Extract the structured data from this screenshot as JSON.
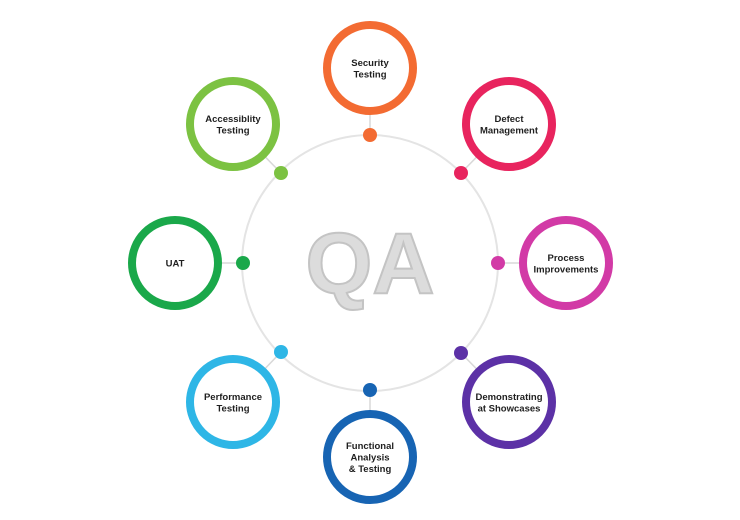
{
  "center": {
    "label": "QA"
  },
  "nodes": [
    {
      "id": "security-testing",
      "lines": [
        "Security",
        "Testing"
      ],
      "color": "#f36b32"
    },
    {
      "id": "defect-management",
      "lines": [
        "Defect",
        "Management"
      ],
      "color": "#e8245e"
    },
    {
      "id": "process-improvements",
      "lines": [
        "Process",
        "Improvements"
      ],
      "color": "#d23aa6"
    },
    {
      "id": "demonstrating-at-showcases",
      "lines": [
        "Demonstrating",
        "at Showcases"
      ],
      "color": "#5c31a6"
    },
    {
      "id": "functional-analysis-testing",
      "lines": [
        "Functional",
        "Analysis",
        "& Testing"
      ],
      "color": "#1764b3"
    },
    {
      "id": "performance-testing",
      "lines": [
        "Performance",
        "Testing"
      ],
      "color": "#2eb6e6"
    },
    {
      "id": "uat",
      "lines": [
        "UAT"
      ],
      "color": "#1aa84a"
    },
    {
      "id": "accessiblity-testing",
      "lines": [
        "Accessiblity",
        "Testing"
      ],
      "color": "#7cc242"
    }
  ],
  "ring_color": "#e4e4e4"
}
